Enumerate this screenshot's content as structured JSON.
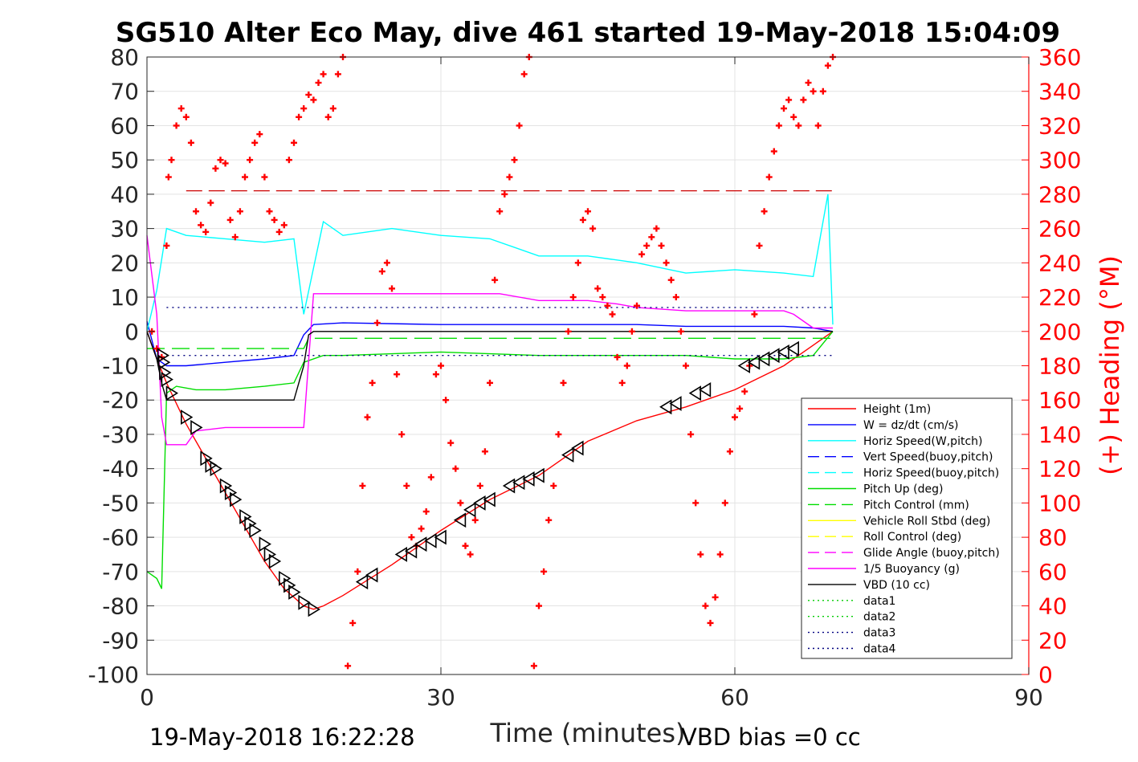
{
  "chart_data": {
    "type": "line",
    "title": "SG510 Alter Eco May, dive 461 started 19-May-2018 15:04:09",
    "xlabel": "Time (minutes)",
    "ylabel": "",
    "y2label": "(+) Heading (°M)",
    "xlim": [
      0,
      90
    ],
    "ylim": [
      -100,
      80
    ],
    "y2lim": [
      0,
      360
    ],
    "xticks": [
      "0",
      "30",
      "60",
      "90"
    ],
    "yticks": [
      "80",
      "70",
      "60",
      "50",
      "40",
      "30",
      "20",
      "10",
      "0",
      "-10",
      "-20",
      "-30",
      "-40",
      "-50",
      "-60",
      "-70",
      "-80",
      "-90",
      "-100"
    ],
    "y2ticks": [
      "360",
      "340",
      "320",
      "300",
      "280",
      "260",
      "240",
      "220",
      "200",
      "180",
      "160",
      "140",
      "120",
      "100",
      "80",
      "60",
      "40",
      "20",
      "0"
    ],
    "grid": true,
    "legend_position": "lower-right",
    "colors": {
      "height": "#ff0000",
      "w": "#0000ff",
      "horiz_speed": "#00ffff",
      "pitch": "#00dd00",
      "roll": "#ffff00",
      "glide": "#ff00ff",
      "vbd": "#000000",
      "heading": "#ff0000",
      "dotted_blue": "#000080"
    },
    "series": [
      {
        "name": "Height (1m)",
        "style": "solid",
        "color": "#ff0000",
        "x": [
          0,
          1,
          2,
          4,
          6,
          8,
          10,
          12,
          14,
          16,
          17,
          18,
          20,
          25,
          30,
          35,
          40,
          45,
          50,
          55,
          60,
          65,
          68,
          70
        ],
        "y": [
          0,
          -8,
          -15,
          -27,
          -37,
          -47,
          -57,
          -67,
          -75,
          -80,
          -81,
          -80,
          -77,
          -68,
          -58,
          -49,
          -42,
          -32,
          -26,
          -22,
          -17,
          -10,
          -4,
          0
        ]
      },
      {
        "name": "W = dz/dt (cm/s)",
        "style": "solid",
        "color": "#0000ff",
        "x": [
          0,
          1,
          2,
          4,
          8,
          12,
          15,
          16,
          17,
          20,
          30,
          40,
          45,
          48,
          50,
          55,
          60,
          65,
          68,
          70
        ],
        "y": [
          3,
          -8,
          -10,
          -10,
          -9,
          -8,
          -7,
          -1,
          2,
          2.5,
          2,
          2,
          2,
          2,
          2,
          1.5,
          1.5,
          1.5,
          1,
          0
        ]
      },
      {
        "name": "Horiz Speed(W,pitch)",
        "style": "solid",
        "color": "#00ffff",
        "x": [
          0,
          1,
          2,
          4,
          8,
          12,
          15,
          16,
          18,
          20,
          25,
          30,
          35,
          40,
          45,
          50,
          55,
          60,
          65,
          68,
          69.5,
          70
        ],
        "y": [
          0,
          12,
          30,
          28,
          27,
          26,
          27,
          5,
          32,
          28,
          30,
          28,
          27,
          22,
          22,
          20,
          17,
          18,
          17,
          16,
          40,
          2
        ]
      },
      {
        "name": "Vert Speed(buoy,pitch)",
        "style": "dashed",
        "color": "#0000ff",
        "x": [],
        "y": []
      },
      {
        "name": "Horiz Speed(buoy,pitch)",
        "style": "dashed",
        "color": "#00ffff",
        "x": [],
        "y": []
      },
      {
        "name": "Pitch Up (deg)",
        "style": "solid",
        "color": "#00dd00",
        "x": [
          0,
          1,
          1.5,
          2,
          3,
          5,
          8,
          12,
          15,
          16,
          18,
          20,
          30,
          40,
          50,
          55,
          60,
          65,
          68,
          70
        ],
        "y": [
          -70,
          -72,
          -75,
          -18,
          -16,
          -17,
          -17,
          -16,
          -15,
          -9,
          -7,
          -7,
          -6,
          -7,
          -7,
          -7,
          -8,
          -8,
          -7,
          0
        ]
      },
      {
        "name": "Pitch Control (mm)",
        "style": "dashed",
        "color": "#00dd00",
        "x": [
          0,
          16,
          16.5,
          70
        ],
        "y": [
          -5,
          -5,
          -2,
          -2
        ]
      },
      {
        "name": "Vehicle Roll Stbd (deg)",
        "style": "solid",
        "color": "#ffff00",
        "x": [],
        "y": []
      },
      {
        "name": "Roll Control (deg)",
        "style": "dashed",
        "color": "#ffff00",
        "x": [],
        "y": []
      },
      {
        "name": "Glide Angle (buoy,pitch)",
        "style": "dashed",
        "color": "#ff00ff",
        "x": [],
        "y": []
      },
      {
        "name": "1/5 Buoyancy (g)",
        "style": "solid",
        "color": "#ff00ff",
        "x": [
          0,
          1,
          1.5,
          2,
          3,
          4,
          5,
          8,
          12,
          15,
          16,
          17,
          20,
          30,
          36,
          40,
          45,
          48,
          50,
          55,
          60,
          65,
          66,
          68,
          70
        ],
        "y": [
          28,
          5,
          -25,
          -33,
          -33,
          -33,
          -29,
          -28,
          -28,
          -28,
          -28,
          11,
          11,
          11,
          11,
          9,
          9,
          8,
          7,
          6,
          6,
          6,
          5,
          1,
          1
        ]
      },
      {
        "name": "VBD (10 cc)",
        "style": "solid",
        "color": "#000000",
        "x": [
          0,
          1,
          1.5,
          2,
          5,
          10,
          15,
          16,
          16.5,
          17,
          20,
          30,
          40,
          50,
          60,
          65,
          70
        ],
        "y": [
          0,
          -8,
          -15,
          -20,
          -20,
          -20,
          -20,
          -10,
          -1,
          0,
          0,
          0,
          0,
          0,
          0,
          0,
          0
        ]
      },
      {
        "name": "data1",
        "style": "dotted",
        "color": "#00cc00",
        "x": [],
        "y": []
      },
      {
        "name": "data2",
        "style": "dotted",
        "color": "#00cc00",
        "x": [],
        "y": []
      },
      {
        "name": "data3",
        "style": "dotted",
        "color": "#000080",
        "x": [
          2,
          70
        ],
        "y": [
          7,
          7
        ]
      },
      {
        "name": "data4",
        "style": "dotted",
        "color": "#000080",
        "x": [
          2,
          70
        ],
        "y": [
          -7,
          -7
        ]
      }
    ],
    "reference_lines": [
      {
        "style": "dashed",
        "color": "#cc0000",
        "axis": "y2",
        "x": [
          4,
          70
        ],
        "y": [
          282,
          282
        ]
      }
    ],
    "heading_markers": {
      "axis": "y2",
      "marker": "+",
      "color": "#ff0000",
      "x": [
        0.5,
        1,
        1.5,
        2,
        2.2,
        2.5,
        3,
        3.5,
        4,
        4.5,
        5,
        5.5,
        6,
        6.5,
        7,
        7.5,
        8,
        8.5,
        9,
        9.5,
        10,
        10.5,
        11,
        11.5,
        12,
        12.5,
        13,
        13.5,
        14,
        14.5,
        15,
        15.5,
        16,
        16.5,
        17,
        17.5,
        18,
        18.5,
        19,
        19.5,
        20,
        20.5,
        21,
        21.5,
        22,
        22.5,
        23,
        23.5,
        24,
        24.5,
        25,
        25.5,
        26,
        26.5,
        27,
        27.5,
        28,
        28.5,
        29,
        29.5,
        30,
        30.5,
        31,
        31.5,
        32,
        32.5,
        33,
        33.5,
        34,
        34.5,
        35,
        35.5,
        36,
        36.5,
        37,
        37.5,
        38,
        38.5,
        39,
        39.5,
        40,
        40.5,
        41,
        41.5,
        42,
        42.5,
        43,
        43.5,
        44,
        44.5,
        45,
        45.5,
        46,
        46.5,
        47,
        47.5,
        48,
        48.5,
        49,
        49.5,
        50,
        50.5,
        51,
        51.5,
        52,
        52.5,
        53,
        53.5,
        54,
        54.5,
        55,
        55.5,
        56,
        56.5,
        57,
        57.5,
        58,
        58.5,
        59,
        59.5,
        60,
        60.5,
        61,
        61.5,
        62,
        62.5,
        63,
        63.5,
        64,
        64.5,
        65,
        65.5,
        66,
        66.5,
        67,
        67.5,
        68,
        68.5,
        69,
        69.5,
        70
      ],
      "y": [
        200,
        190,
        185,
        250,
        290,
        300,
        320,
        330,
        325,
        310,
        270,
        262,
        258,
        275,
        295,
        300,
        298,
        265,
        255,
        270,
        290,
        300,
        310,
        315,
        290,
        270,
        265,
        258,
        262,
        300,
        310,
        325,
        330,
        338,
        335,
        345,
        350,
        325,
        330,
        350,
        360,
        5,
        30,
        60,
        110,
        150,
        170,
        205,
        235,
        240,
        225,
        175,
        140,
        110,
        80,
        75,
        85,
        95,
        115,
        175,
        180,
        160,
        135,
        120,
        100,
        75,
        70,
        90,
        110,
        130,
        170,
        230,
        270,
        280,
        290,
        300,
        320,
        350,
        360,
        5,
        40,
        60,
        90,
        110,
        140,
        170,
        200,
        220,
        240,
        265,
        270,
        260,
        225,
        220,
        215,
        210,
        185,
        170,
        180,
        200,
        215,
        245,
        250,
        255,
        260,
        250,
        240,
        230,
        220,
        200,
        180,
        140,
        100,
        70,
        40,
        30,
        45,
        70,
        100,
        130,
        150,
        155,
        165,
        180,
        210,
        250,
        270,
        290,
        305,
        320,
        330,
        335,
        325,
        320,
        335,
        345,
        340,
        320,
        340,
        355,
        360
      ]
    },
    "profile_markers": {
      "marker": "triangle",
      "color": "#000000",
      "dive_x": [
        1.6,
        1.7,
        1.8,
        2,
        2.5,
        4,
        5,
        6,
        6.5,
        7,
        8,
        8.5,
        9,
        10,
        10.5,
        11,
        12,
        12.5,
        13,
        14,
        14.5,
        15,
        16,
        17
      ],
      "dive_y": [
        -7,
        -9,
        -12,
        -14,
        -18,
        -25,
        -28,
        -37,
        -39,
        -40,
        -45,
        -47,
        -49,
        -54,
        -56,
        -58,
        -62,
        -65,
        -67,
        -72,
        -74,
        -76,
        -79,
        -81
      ],
      "climb_x": [
        22,
        23,
        26,
        27,
        28,
        29,
        30,
        32,
        33,
        34,
        35,
        37,
        38,
        39,
        40,
        43,
        44,
        53,
        54,
        56,
        57,
        61,
        62,
        63,
        64,
        65,
        66
      ],
      "climb_y": [
        -73,
        -71,
        -65,
        -64,
        -62,
        -61,
        -60,
        -55,
        -52,
        -50,
        -49,
        -45,
        -44,
        -43,
        -42,
        -36,
        -34,
        -22,
        -21,
        -18,
        -17,
        -10,
        -9,
        -8,
        -7,
        -6,
        -5
      ]
    },
    "annotations": {
      "end_time": "19-May-2018 16:22:28",
      "vbd_bias": "VBD bias =0 cc"
    }
  }
}
